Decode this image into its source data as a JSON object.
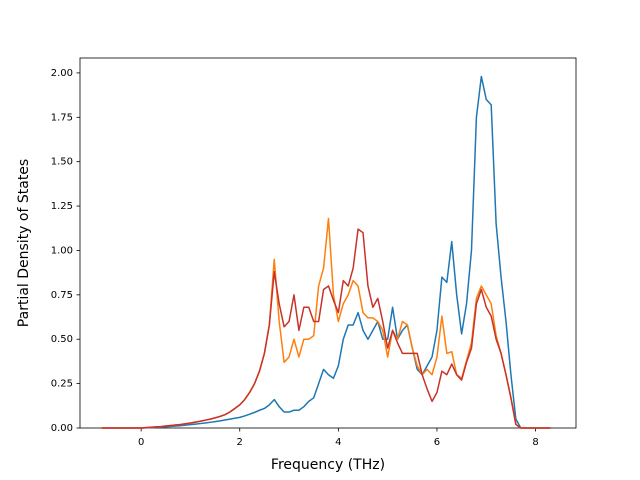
{
  "chart_data": {
    "type": "line",
    "xlabel": "Frequency (THz)",
    "ylabel": "Partial Density of States",
    "x": [
      -0.8,
      -0.7,
      -0.6,
      -0.5,
      -0.4,
      -0.3,
      -0.2,
      -0.1,
      0.0,
      0.1,
      0.2,
      0.3,
      0.4,
      0.5,
      0.6,
      0.7,
      0.8,
      0.9,
      1.0,
      1.1,
      1.2,
      1.3,
      1.4,
      1.5,
      1.6,
      1.7,
      1.8,
      1.9,
      2.0,
      2.1,
      2.2,
      2.3,
      2.4,
      2.5,
      2.6,
      2.7,
      2.8,
      2.9,
      3.0,
      3.1,
      3.2,
      3.3,
      3.4,
      3.5,
      3.6,
      3.7,
      3.8,
      3.9,
      4.0,
      4.1,
      4.2,
      4.3,
      4.4,
      4.5,
      4.6,
      4.7,
      4.8,
      4.9,
      5.0,
      5.1,
      5.2,
      5.3,
      5.4,
      5.5,
      5.6,
      5.7,
      5.8,
      5.9,
      6.0,
      6.1,
      6.2,
      6.3,
      6.4,
      6.5,
      6.6,
      6.7,
      6.8,
      6.9,
      7.0,
      7.1,
      7.2,
      7.3,
      7.4,
      7.5,
      7.6,
      7.7,
      7.8,
      7.9,
      8.0,
      8.1,
      8.2,
      8.3
    ],
    "series": [
      {
        "color": "#1f77b4",
        "values": [
          0,
          0,
          0,
          0,
          0,
          0,
          0,
          0,
          0,
          0.001,
          0.002,
          0.004,
          0.005,
          0.007,
          0.009,
          0.011,
          0.013,
          0.016,
          0.019,
          0.022,
          0.025,
          0.028,
          0.032,
          0.036,
          0.04,
          0.045,
          0.05,
          0.055,
          0.06,
          0.068,
          0.078,
          0.088,
          0.1,
          0.11,
          0.13,
          0.16,
          0.12,
          0.09,
          0.09,
          0.1,
          0.1,
          0.12,
          0.15,
          0.17,
          0.25,
          0.33,
          0.3,
          0.28,
          0.35,
          0.5,
          0.58,
          0.58,
          0.65,
          0.55,
          0.5,
          0.55,
          0.6,
          0.5,
          0.5,
          0.68,
          0.5,
          0.55,
          0.58,
          0.45,
          0.33,
          0.3,
          0.35,
          0.4,
          0.55,
          0.85,
          0.82,
          1.05,
          0.75,
          0.53,
          0.7,
          1.0,
          1.75,
          1.98,
          1.85,
          1.82,
          1.15,
          0.85,
          0.6,
          0.3,
          0.05,
          0,
          0,
          0,
          0,
          0,
          0,
          0
        ]
      },
      {
        "color": "#ff7f0e",
        "values": [
          0,
          0,
          0,
          0,
          0,
          0,
          0,
          0,
          0,
          0.002,
          0.004,
          0.006,
          0.008,
          0.011,
          0.014,
          0.017,
          0.02,
          0.024,
          0.028,
          0.033,
          0.038,
          0.044,
          0.05,
          0.057,
          0.065,
          0.075,
          0.09,
          0.11,
          0.13,
          0.16,
          0.2,
          0.25,
          0.32,
          0.42,
          0.58,
          0.95,
          0.6,
          0.37,
          0.4,
          0.5,
          0.4,
          0.5,
          0.5,
          0.52,
          0.8,
          0.9,
          1.18,
          0.75,
          0.6,
          0.7,
          0.75,
          0.83,
          0.8,
          0.65,
          0.62,
          0.62,
          0.6,
          0.55,
          0.4,
          0.55,
          0.5,
          0.6,
          0.58,
          0.45,
          0.35,
          0.3,
          0.33,
          0.3,
          0.4,
          0.63,
          0.42,
          0.43,
          0.3,
          0.28,
          0.38,
          0.48,
          0.73,
          0.8,
          0.75,
          0.7,
          0.52,
          0.42,
          0.3,
          0.17,
          0.02,
          0,
          0,
          0,
          0,
          0,
          0,
          0
        ]
      },
      {
        "color": "#c8322a",
        "values": [
          0,
          0,
          0,
          0,
          0,
          0,
          0,
          0,
          0,
          0.002,
          0.004,
          0.006,
          0.008,
          0.011,
          0.014,
          0.017,
          0.02,
          0.024,
          0.028,
          0.033,
          0.038,
          0.044,
          0.05,
          0.057,
          0.065,
          0.075,
          0.09,
          0.11,
          0.13,
          0.16,
          0.2,
          0.25,
          0.32,
          0.42,
          0.58,
          0.88,
          0.7,
          0.57,
          0.6,
          0.75,
          0.55,
          0.68,
          0.68,
          0.6,
          0.6,
          0.78,
          0.8,
          0.72,
          0.65,
          0.83,
          0.8,
          0.9,
          1.12,
          1.1,
          0.8,
          0.68,
          0.73,
          0.6,
          0.45,
          0.55,
          0.48,
          0.42,
          0.42,
          0.42,
          0.42,
          0.3,
          0.22,
          0.15,
          0.2,
          0.32,
          0.3,
          0.36,
          0.3,
          0.27,
          0.37,
          0.45,
          0.7,
          0.78,
          0.68,
          0.63,
          0.5,
          0.42,
          0.3,
          0.17,
          0.02,
          0,
          0,
          0,
          0,
          0,
          0,
          0
        ]
      }
    ],
    "xlim": [
      -1.24,
      8.82
    ],
    "ylim": [
      0,
      2.084
    ],
    "xticks": [
      0,
      2,
      4,
      6,
      8
    ],
    "yticks": [
      {
        "value": 0,
        "label": "0.00"
      },
      {
        "value": 0.25,
        "label": "0.25"
      },
      {
        "value": 0.5,
        "label": "0.50"
      },
      {
        "value": 0.75,
        "label": "0.75"
      },
      {
        "value": 1,
        "label": "1.00"
      },
      {
        "value": 1.25,
        "label": "1.25"
      },
      {
        "value": 1.5,
        "label": "1.50"
      },
      {
        "value": 1.75,
        "label": "1.75"
      },
      {
        "value": 2,
        "label": "2.00"
      }
    ]
  }
}
